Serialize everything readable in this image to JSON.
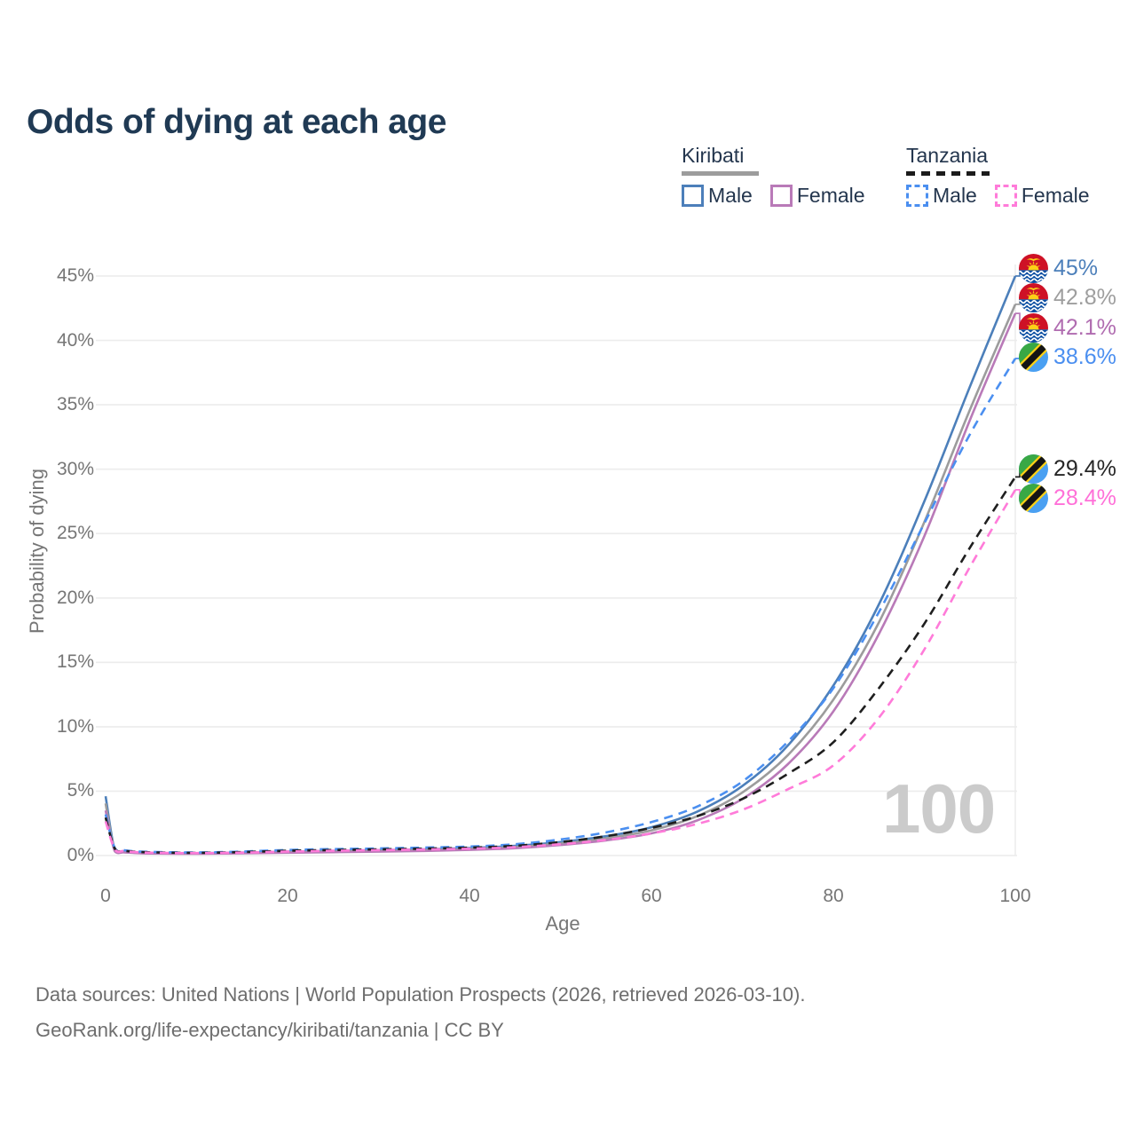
{
  "title": "Odds of dying at each age",
  "legend": {
    "groups": [
      {
        "name": "Kiribati",
        "line_style": "solid",
        "underline_color": "#9c9c9c",
        "items": [
          {
            "label": "Male",
            "color": "#4c7fba"
          },
          {
            "label": "Female",
            "color": "#b97ab8"
          }
        ]
      },
      {
        "name": "Tanzania",
        "line_style": "dashed",
        "underline_color": "#1b1b1b",
        "items": [
          {
            "label": "Male",
            "color": "#4b8ff0"
          },
          {
            "label": "Female",
            "color": "#ff7bd9"
          }
        ]
      }
    ]
  },
  "axes": {
    "y": {
      "title": "Probability of dying",
      "tick_labels": [
        "0%",
        "5%",
        "10%",
        "15%",
        "20%",
        "25%",
        "30%",
        "35%",
        "40%",
        "45%"
      ],
      "tick_values": [
        0,
        5,
        10,
        15,
        20,
        25,
        30,
        35,
        40,
        45
      ],
      "min": 0,
      "max": 45,
      "unit": "%"
    },
    "x": {
      "title": "Age",
      "tick_labels": [
        "0",
        "20",
        "40",
        "60",
        "80",
        "100"
      ],
      "tick_values": [
        0,
        20,
        40,
        60,
        80,
        100
      ],
      "min": 0,
      "max": 100
    }
  },
  "watermark": "100",
  "footer": {
    "line1": "Data sources: United Nations | World Population Prospects (2026, retrieved 2026-03-10).",
    "line2": "GeoRank.org/life-expectancy/kiribati/tanzania | CC BY"
  },
  "colors": {
    "title_text": "#203a54",
    "legend_text": "#24364e",
    "tick_text": "#767676",
    "grid": "#ececec",
    "watermark": "#cbcbcb",
    "footer_text": "#6e6e6e"
  },
  "chart_data": {
    "type": "line",
    "xlabel": "Age",
    "ylabel": "Probability of dying",
    "x_range": [
      0,
      100
    ],
    "y_range_pct": [
      0,
      45
    ],
    "grid": "horizontal",
    "legend_position": "top-right",
    "ages": [
      0,
      1,
      2,
      3,
      5,
      10,
      15,
      20,
      25,
      30,
      35,
      40,
      45,
      50,
      55,
      60,
      65,
      70,
      75,
      80,
      85,
      90,
      95,
      100
    ],
    "series": [
      {
        "name": "Kiribati Male",
        "country": "Kiribati",
        "flag": "kiribati",
        "line_style": "solid",
        "color": "#4c7fba",
        "end_label": "45%",
        "end_value_pct": 45.0,
        "label_color": "#4c7fba",
        "values_pct": [
          4.6,
          0.42,
          0.3,
          0.26,
          0.2,
          0.18,
          0.23,
          0.3,
          0.36,
          0.42,
          0.48,
          0.58,
          0.75,
          1.05,
          1.5,
          2.2,
          3.4,
          5.4,
          8.55,
          13.2,
          19.5,
          27.5,
          36.4,
          45.0
        ]
      },
      {
        "name": "Kiribati Both sexes",
        "country": "Kiribati",
        "flag": "kiribati",
        "line_style": "solid",
        "color": "#9c9c9c",
        "end_label": "42.8%",
        "end_value_pct": 42.8,
        "label_color": "#9e9e9e",
        "values_pct": [
          4.05,
          0.38,
          0.27,
          0.23,
          0.18,
          0.16,
          0.2,
          0.26,
          0.31,
          0.36,
          0.42,
          0.51,
          0.66,
          0.93,
          1.34,
          1.96,
          3.05,
          4.9,
          7.8,
          12.1,
          18.1,
          25.9,
          34.6,
          42.8
        ]
      },
      {
        "name": "Kiribati Female",
        "country": "Kiribati",
        "flag": "kiribati",
        "line_style": "solid",
        "color": "#b97ab8",
        "end_label": "42.1%",
        "end_value_pct": 42.1,
        "label_color": "#b06cb0",
        "values_pct": [
          3.5,
          0.34,
          0.25,
          0.21,
          0.16,
          0.14,
          0.17,
          0.22,
          0.26,
          0.3,
          0.36,
          0.44,
          0.57,
          0.82,
          1.18,
          1.72,
          2.72,
          4.4,
          7.1,
          11.2,
          17.2,
          24.8,
          33.8,
          42.1
        ]
      },
      {
        "name": "Tanzania Male",
        "country": "Tanzania",
        "flag": "tanzania",
        "line_style": "dashed",
        "color": "#4b8ff0",
        "end_label": "38.6%",
        "end_value_pct": 38.6,
        "label_color": "#4b8ff0",
        "values_pct": [
          3.2,
          0.6,
          0.42,
          0.34,
          0.28,
          0.24,
          0.31,
          0.43,
          0.5,
          0.55,
          0.62,
          0.7,
          0.88,
          1.25,
          1.8,
          2.6,
          3.8,
          5.75,
          8.85,
          13.0,
          18.9,
          25.8,
          32.7,
          38.6
        ]
      },
      {
        "name": "Tanzania Both sexes",
        "country": "Tanzania",
        "flag": "tanzania",
        "line_style": "dashed",
        "color": "#1f1f1f",
        "end_label": "29.4%",
        "end_value_pct": 29.4,
        "label_color": "#262626",
        "values_pct": [
          2.95,
          0.55,
          0.38,
          0.31,
          0.25,
          0.21,
          0.27,
          0.37,
          0.43,
          0.48,
          0.54,
          0.61,
          0.76,
          1.05,
          1.5,
          2.15,
          3.05,
          4.4,
          6.35,
          8.8,
          13.0,
          18.0,
          23.9,
          29.4
        ]
      },
      {
        "name": "Tanzania Female",
        "country": "Tanzania",
        "flag": "tanzania",
        "line_style": "dashed",
        "color": "#ff7bd9",
        "end_label": "28.4%",
        "end_value_pct": 28.4,
        "label_color": "#ff70d8",
        "values_pct": [
          2.65,
          0.5,
          0.35,
          0.28,
          0.22,
          0.19,
          0.23,
          0.31,
          0.37,
          0.42,
          0.47,
          0.53,
          0.65,
          0.88,
          1.22,
          1.72,
          2.45,
          3.55,
          5.15,
          7.0,
          10.7,
          16.0,
          22.4,
          28.4
        ]
      }
    ]
  }
}
